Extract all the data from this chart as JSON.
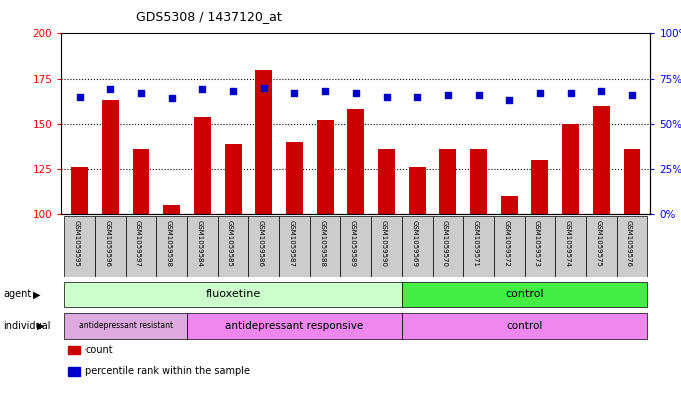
{
  "title": "GDS5308 / 1437120_at",
  "samples": [
    "GSM1059595",
    "GSM1059596",
    "GSM1059597",
    "GSM1059598",
    "GSM1059584",
    "GSM1059585",
    "GSM1059586",
    "GSM1059587",
    "GSM1059588",
    "GSM1059589",
    "GSM1059590",
    "GSM1059569",
    "GSM1059570",
    "GSM1059571",
    "GSM1059572",
    "GSM1059573",
    "GSM1059574",
    "GSM1059575",
    "GSM1059576"
  ],
  "counts": [
    126,
    163,
    136,
    105,
    154,
    139,
    180,
    140,
    152,
    158,
    136,
    126,
    136,
    136,
    110,
    130,
    150,
    160,
    136
  ],
  "percentiles": [
    65,
    69,
    67,
    64,
    69,
    68,
    70,
    67,
    68,
    67,
    65,
    65,
    66,
    66,
    63,
    67,
    67,
    68,
    66
  ],
  "bar_color": "#cc0000",
  "dot_color": "#0000cc",
  "ylim_left": [
    100,
    200
  ],
  "ylim_right": [
    0,
    100
  ],
  "yticks_left": [
    100,
    125,
    150,
    175,
    200
  ],
  "yticks_right": [
    0,
    25,
    50,
    75,
    100
  ],
  "fluoxetine_count": 11,
  "resistant_count": 4,
  "responsive_count": 7,
  "control_count": 8,
  "agent_fluox_color": "#ccffcc",
  "agent_ctrl_color": "#44ee44",
  "ind_resistant_color": "#ddaadd",
  "ind_responsive_color": "#ee88ee",
  "ind_control_color": "#ee88ee",
  "sample_bg_color": "#cccccc",
  "legend_count_color": "#cc0000",
  "legend_dot_color": "#0000cc"
}
